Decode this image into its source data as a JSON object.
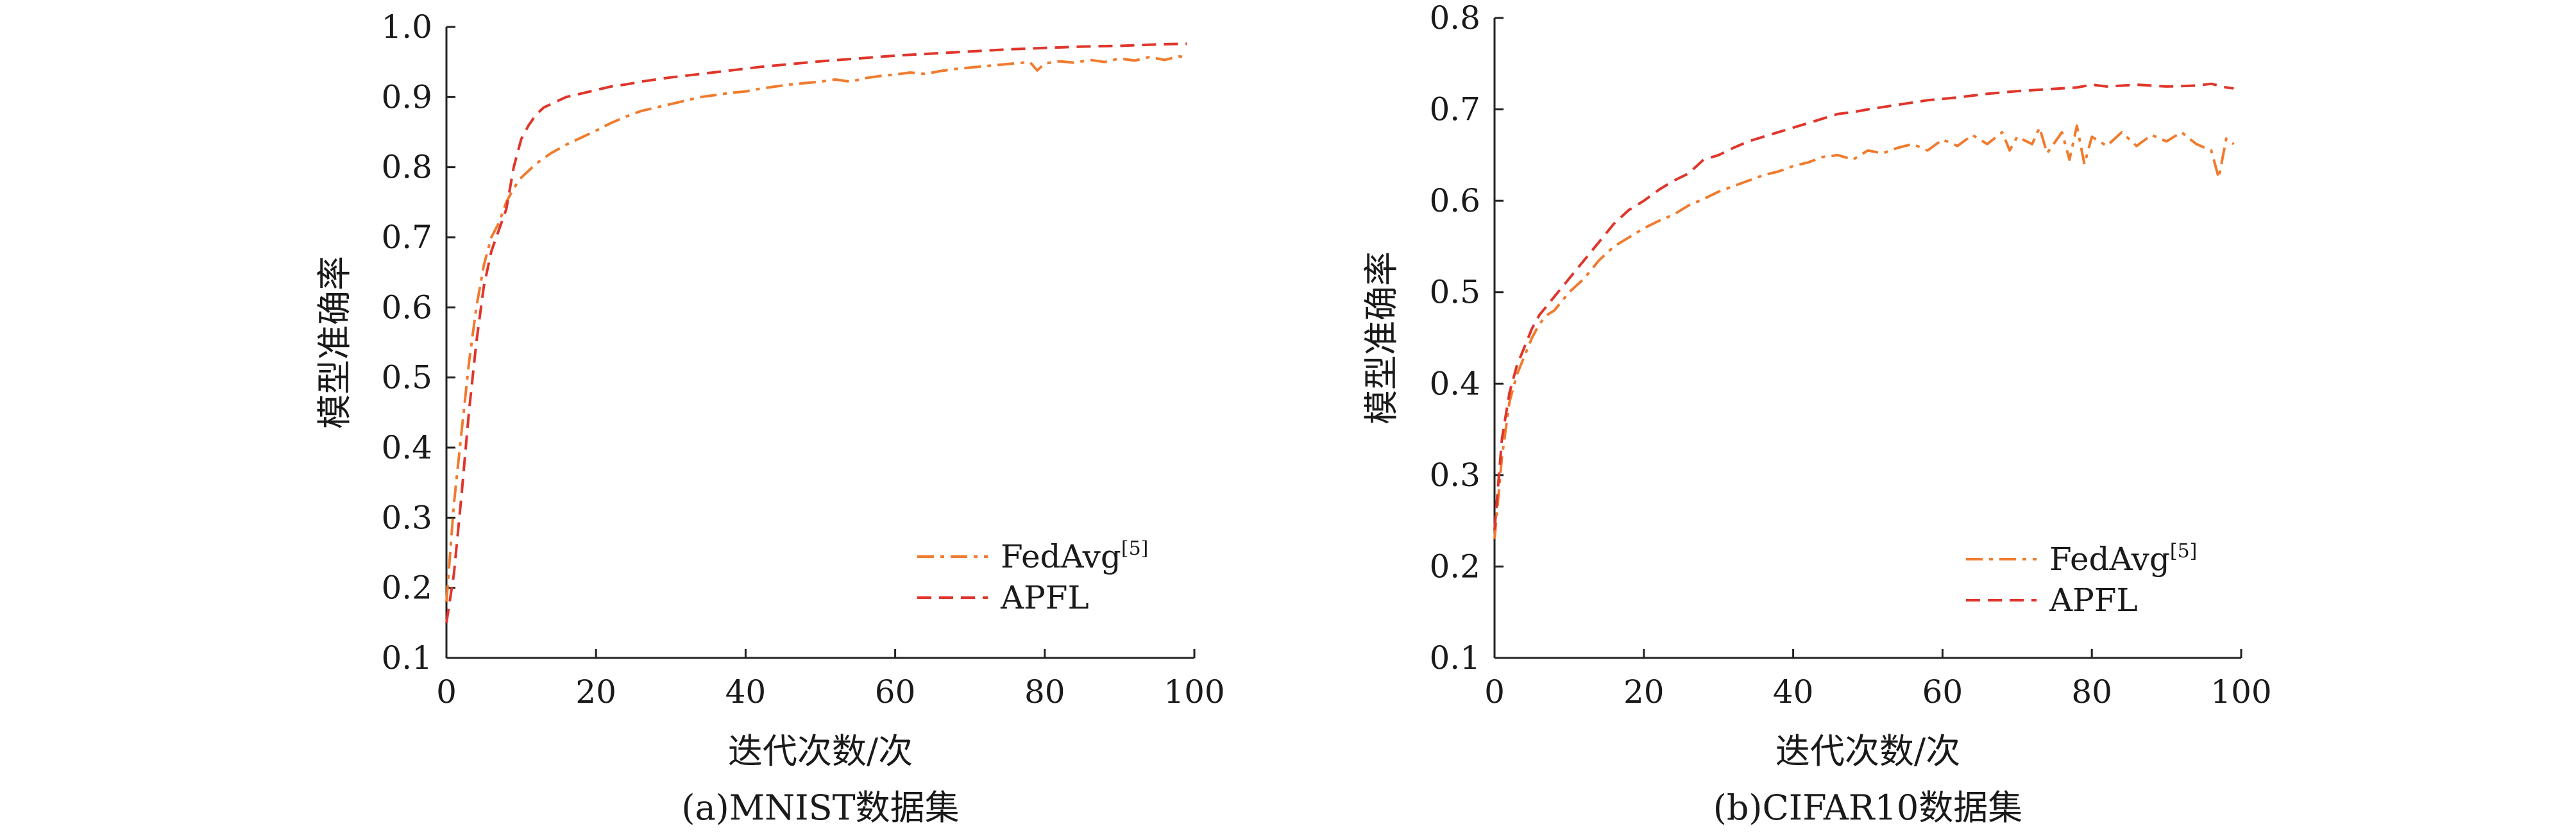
{
  "chart_data": [
    {
      "type": "line",
      "caption": "(a)MNIST数据集",
      "xlabel": "迭代次数/次",
      "ylabel": "模型准确率",
      "xlim": [
        0,
        100
      ],
      "ylim": [
        0.1,
        1.0
      ],
      "xticks": [
        0,
        20,
        40,
        60,
        80,
        100
      ],
      "yticks": [
        0.1,
        0.2,
        0.3,
        0.4,
        0.5,
        0.6,
        0.7,
        0.8,
        0.9,
        1.0
      ],
      "xtick_labels": [
        "0",
        "20",
        "40",
        "60",
        "80",
        "100"
      ],
      "ytick_labels": [
        "0.1",
        "0.2",
        "0.3",
        "0.4",
        "0.5",
        "0.6",
        "0.7",
        "0.8",
        "0.9",
        "1.0"
      ],
      "grid": false,
      "legend_position": "bottom-right",
      "series": [
        {
          "name": "FedAvg",
          "name_sup": "[5]",
          "color": "#F07B2E",
          "dash": "dashdot",
          "x": [
            0,
            1,
            2,
            3,
            4,
            5,
            6,
            7,
            8,
            9,
            10,
            12,
            14,
            16,
            18,
            20,
            22,
            24,
            26,
            28,
            30,
            32,
            34,
            36,
            38,
            40,
            42,
            44,
            46,
            48,
            50,
            52,
            54,
            56,
            58,
            60,
            62,
            64,
            66,
            68,
            70,
            72,
            74,
            76,
            78,
            79,
            80,
            82,
            84,
            86,
            88,
            90,
            92,
            94,
            96,
            98,
            99
          ],
          "y": [
            0.18,
            0.32,
            0.42,
            0.52,
            0.6,
            0.66,
            0.7,
            0.72,
            0.75,
            0.77,
            0.785,
            0.805,
            0.82,
            0.832,
            0.842,
            0.852,
            0.863,
            0.872,
            0.88,
            0.885,
            0.89,
            0.895,
            0.9,
            0.903,
            0.906,
            0.908,
            0.912,
            0.915,
            0.918,
            0.92,
            0.922,
            0.925,
            0.922,
            0.927,
            0.93,
            0.932,
            0.935,
            0.933,
            0.937,
            0.94,
            0.942,
            0.944,
            0.946,
            0.948,
            0.95,
            0.938,
            0.948,
            0.951,
            0.949,
            0.953,
            0.95,
            0.955,
            0.952,
            0.957,
            0.953,
            0.958,
            0.956
          ]
        },
        {
          "name": "APFL",
          "name_sup": "",
          "color": "#E0352B",
          "dash": "dashed",
          "x": [
            0,
            1,
            2,
            3,
            4,
            5,
            6,
            7,
            8,
            9,
            10,
            11,
            12,
            13,
            14,
            16,
            18,
            20,
            22,
            24,
            26,
            28,
            30,
            34,
            38,
            42,
            46,
            50,
            55,
            60,
            65,
            70,
            75,
            80,
            85,
            90,
            95,
            99
          ],
          "y": [
            0.15,
            0.22,
            0.33,
            0.45,
            0.55,
            0.63,
            0.68,
            0.71,
            0.74,
            0.8,
            0.84,
            0.86,
            0.875,
            0.885,
            0.89,
            0.9,
            0.905,
            0.91,
            0.915,
            0.918,
            0.922,
            0.925,
            0.928,
            0.933,
            0.938,
            0.943,
            0.947,
            0.951,
            0.955,
            0.959,
            0.962,
            0.965,
            0.968,
            0.97,
            0.972,
            0.973,
            0.975,
            0.976
          ]
        }
      ]
    },
    {
      "type": "line",
      "caption": "(b)CIFAR10数据集",
      "xlabel": "迭代次数/次",
      "ylabel": "模型准确率",
      "xlim": [
        0,
        100
      ],
      "ylim": [
        0.1,
        0.8
      ],
      "xticks": [
        0,
        20,
        40,
        60,
        80,
        100
      ],
      "yticks": [
        0.1,
        0.2,
        0.3,
        0.4,
        0.5,
        0.6,
        0.7,
        0.8
      ],
      "xtick_labels": [
        "0",
        "20",
        "40",
        "60",
        "80",
        "100"
      ],
      "ytick_labels": [
        "0.1",
        "0.2",
        "0.3",
        "0.4",
        "0.5",
        "0.6",
        "0.7",
        "0.8"
      ],
      "grid": false,
      "legend_position": "bottom-right",
      "series": [
        {
          "name": "FedAvg",
          "name_sup": "[5]",
          "color": "#F07B2E",
          "dash": "dashdot",
          "x": [
            0,
            1,
            2,
            3,
            4,
            5,
            6,
            7,
            8,
            10,
            12,
            14,
            16,
            18,
            20,
            22,
            24,
            26,
            28,
            30,
            32,
            34,
            36,
            38,
            40,
            42,
            44,
            46,
            48,
            50,
            52,
            54,
            56,
            58,
            60,
            62,
            64,
            66,
            68,
            69,
            70,
            72,
            73,
            74,
            76,
            77,
            78,
            79,
            80,
            82,
            84,
            86,
            88,
            90,
            92,
            94,
            96,
            97,
            98,
            99
          ],
          "y": [
            0.23,
            0.32,
            0.38,
            0.41,
            0.43,
            0.45,
            0.465,
            0.475,
            0.48,
            0.5,
            0.515,
            0.535,
            0.55,
            0.56,
            0.57,
            0.578,
            0.585,
            0.595,
            0.602,
            0.61,
            0.616,
            0.622,
            0.628,
            0.632,
            0.638,
            0.642,
            0.648,
            0.65,
            0.645,
            0.655,
            0.652,
            0.658,
            0.662,
            0.655,
            0.667,
            0.66,
            0.672,
            0.662,
            0.675,
            0.655,
            0.67,
            0.662,
            0.68,
            0.652,
            0.675,
            0.645,
            0.682,
            0.64,
            0.67,
            0.66,
            0.675,
            0.66,
            0.672,
            0.665,
            0.675,
            0.662,
            0.655,
            0.625,
            0.668,
            0.662
          ]
        },
        {
          "name": "APFL",
          "name_sup": "",
          "color": "#E0352B",
          "dash": "dashed",
          "x": [
            0,
            1,
            2,
            3,
            4,
            5,
            6,
            7,
            8,
            10,
            12,
            14,
            16,
            18,
            20,
            22,
            24,
            26,
            28,
            30,
            32,
            34,
            36,
            38,
            40,
            42,
            44,
            46,
            48,
            50,
            54,
            58,
            62,
            66,
            70,
            74,
            78,
            80,
            82,
            86,
            90,
            94,
            96,
            98,
            99
          ],
          "y": [
            0.24,
            0.34,
            0.39,
            0.42,
            0.44,
            0.46,
            0.475,
            0.485,
            0.495,
            0.515,
            0.535,
            0.555,
            0.575,
            0.59,
            0.6,
            0.612,
            0.622,
            0.63,
            0.645,
            0.65,
            0.658,
            0.665,
            0.67,
            0.675,
            0.68,
            0.685,
            0.69,
            0.695,
            0.697,
            0.7,
            0.705,
            0.71,
            0.713,
            0.717,
            0.72,
            0.722,
            0.724,
            0.727,
            0.725,
            0.727,
            0.725,
            0.726,
            0.728,
            0.724,
            0.723
          ]
        }
      ]
    }
  ]
}
